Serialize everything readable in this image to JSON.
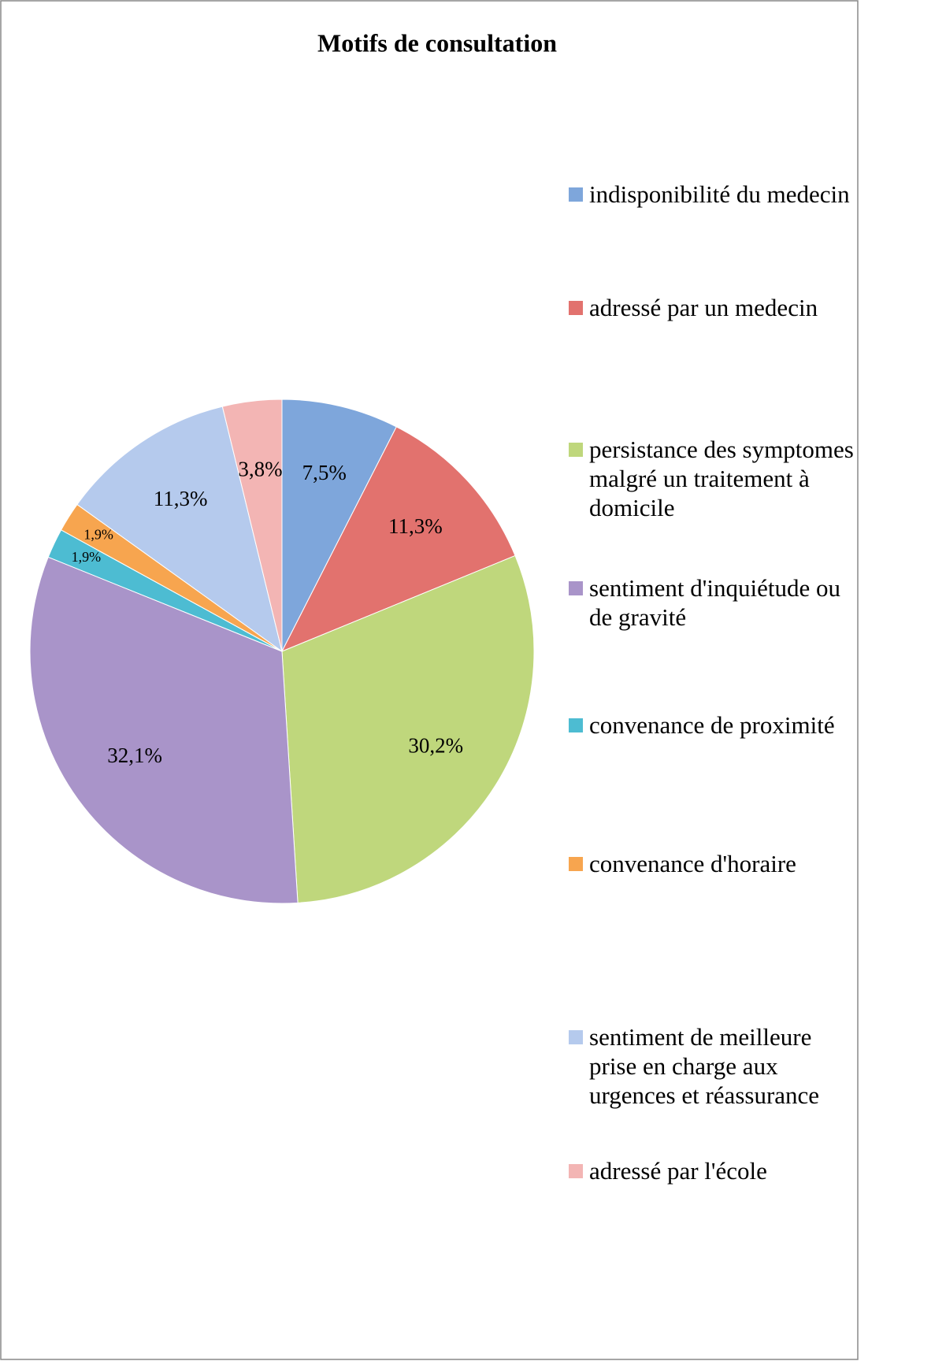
{
  "chart_data": {
    "type": "pie",
    "title": "Motifs de consultation",
    "series": [
      {
        "name": "indisponibilité du medecin",
        "color": "#7ea6db",
        "values": [
          7.5
        ],
        "value_labels": [
          "7,5%"
        ]
      },
      {
        "name": "adressé par un medecin",
        "color": "#e2726e",
        "values": [
          11.3
        ],
        "value_labels": [
          "11,3%"
        ]
      },
      {
        "name": "persistance des symptomes malgré un traitement à domicile",
        "color": "#bfd77c",
        "values": [
          30.2
        ],
        "value_labels": [
          "30,2%"
        ]
      },
      {
        "name": "sentiment d'inquiétude ou de gravité",
        "color": "#a994c9",
        "values": [
          32.1
        ],
        "value_labels": [
          "32,1%"
        ]
      },
      {
        "name": "convenance de proximité",
        "color": "#4dbcd2",
        "values": [
          1.9
        ],
        "value_labels": [
          "1,9%"
        ]
      },
      {
        "name": "convenance d'horaire",
        "color": "#f7a54f",
        "values": [
          1.9
        ],
        "value_labels": [
          "1,9%"
        ]
      },
      {
        "name": "sentiment de meilleure prise en charge aux urgences et réassurance",
        "color": "#b5caed",
        "values": [
          11.3
        ],
        "value_labels": [
          "11,3%"
        ]
      },
      {
        "name": "adressé par l'école",
        "color": "#f3b5b4",
        "values": [
          3.8
        ],
        "value_labels": [
          "3,8%"
        ]
      }
    ]
  }
}
